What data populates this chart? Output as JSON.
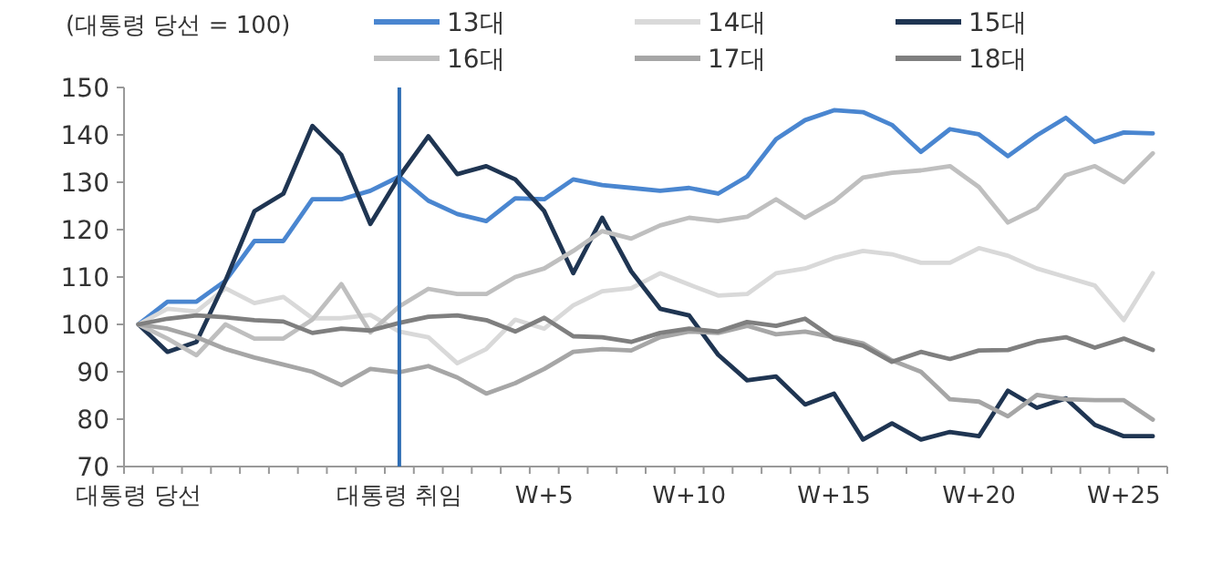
{
  "chart_data": {
    "type": "line",
    "ylabel": "(대통령 당선 = 100)",
    "categories": [
      "대통령 당선",
      null,
      null,
      null,
      null,
      null,
      null,
      null,
      null,
      "대통령 취임",
      null,
      null,
      null,
      null,
      "W+5",
      null,
      null,
      null,
      null,
      "W+10",
      null,
      null,
      null,
      null,
      "W+15",
      null,
      null,
      null,
      null,
      "W+20",
      null,
      null,
      null,
      null,
      "W+25",
      null
    ],
    "ylim": [
      70,
      150
    ],
    "yticks": [
      70,
      80,
      90,
      100,
      110,
      120,
      130,
      140,
      150
    ],
    "legend": "top",
    "ref_lines": [
      {
        "axis": "x",
        "value": "대통령 취임",
        "color": "#2e6db4"
      }
    ],
    "series": [
      {
        "name": "13대",
        "color": "#4a86d0",
        "values": [
          100,
          104.8,
          104.8,
          109.2,
          117.6,
          117.6,
          126.4,
          126.4,
          128.2,
          131.2,
          126.1,
          123.3,
          121.8,
          126.6,
          126.4,
          130.6,
          129.4,
          128.8,
          128.2,
          128.8,
          127.6,
          131.2,
          139.1,
          143.1,
          145.2,
          144.8,
          142.1,
          136.4,
          141.2,
          140.1,
          135.5,
          139.9,
          143.6,
          138.5,
          140.5,
          140.3
        ]
      },
      {
        "name": "14대",
        "color": "#d9d9d9",
        "values": [
          100,
          103.3,
          102.7,
          107.6,
          104.5,
          105.8,
          101.3,
          101.3,
          102,
          98.5,
          97.3,
          91.8,
          94.8,
          101,
          99.1,
          104,
          107,
          107.6,
          110.8,
          108.4,
          106.1,
          106.4,
          110.8,
          111.8,
          114,
          115.5,
          114.8,
          113,
          113,
          116.1,
          114.5,
          111.8,
          110,
          108.2,
          100.9,
          110.8
        ]
      },
      {
        "name": "15대",
        "color": "#1f3552",
        "values": [
          100,
          94.2,
          96.3,
          109.2,
          123.9,
          127.6,
          141.9,
          135.8,
          121.2,
          131.2,
          139.7,
          131.7,
          133.4,
          130.6,
          123.9,
          110.8,
          122.5,
          111.2,
          103.3,
          101.9,
          93.6,
          88.2,
          89,
          83.1,
          85.4,
          75.7,
          79.1,
          75.7,
          77.3,
          76.4,
          86,
          82.4,
          84.4,
          78.8,
          76.4,
          76.4
        ]
      },
      {
        "name": "16대",
        "color": "#bfbfbf",
        "values": [
          100,
          97,
          93.5,
          100,
          97,
          97,
          101,
          108.5,
          98.3,
          103.8,
          107.5,
          106.4,
          106.4,
          110,
          111.8,
          115.5,
          119.7,
          118.1,
          120.9,
          122.5,
          121.8,
          122.7,
          126.4,
          122.5,
          126,
          131,
          132,
          132.5,
          133.4,
          129,
          121.5,
          124.5,
          131.5,
          133.4,
          130,
          136.1
        ]
      },
      {
        "name": "17대",
        "color": "#a6a6a6",
        "values": [
          100,
          99.1,
          97.3,
          94.8,
          93,
          91.5,
          90,
          87.2,
          90.6,
          89.9,
          91.2,
          88.8,
          85.4,
          87.6,
          90.6,
          94.2,
          94.8,
          94.5,
          97.3,
          98.5,
          98.2,
          99.7,
          97.9,
          98.5,
          97.3,
          96,
          92.4,
          90,
          84.2,
          83.7,
          80.6,
          85.1,
          84.2,
          84,
          84,
          79.9
        ]
      },
      {
        "name": "18대",
        "color": "#7f7f7f",
        "values": [
          100,
          101.2,
          101.9,
          101.5,
          100.9,
          100.6,
          98.2,
          99.1,
          98.7,
          100.3,
          101.6,
          101.9,
          100.9,
          98.5,
          101.4,
          97.5,
          97.3,
          96.3,
          98.2,
          99.1,
          98.5,
          100.5,
          99.7,
          101.2,
          97,
          95.5,
          92.1,
          94.2,
          92.7,
          94.5,
          94.6,
          96.4,
          97.3,
          95.1,
          97,
          94.6
        ]
      }
    ]
  }
}
